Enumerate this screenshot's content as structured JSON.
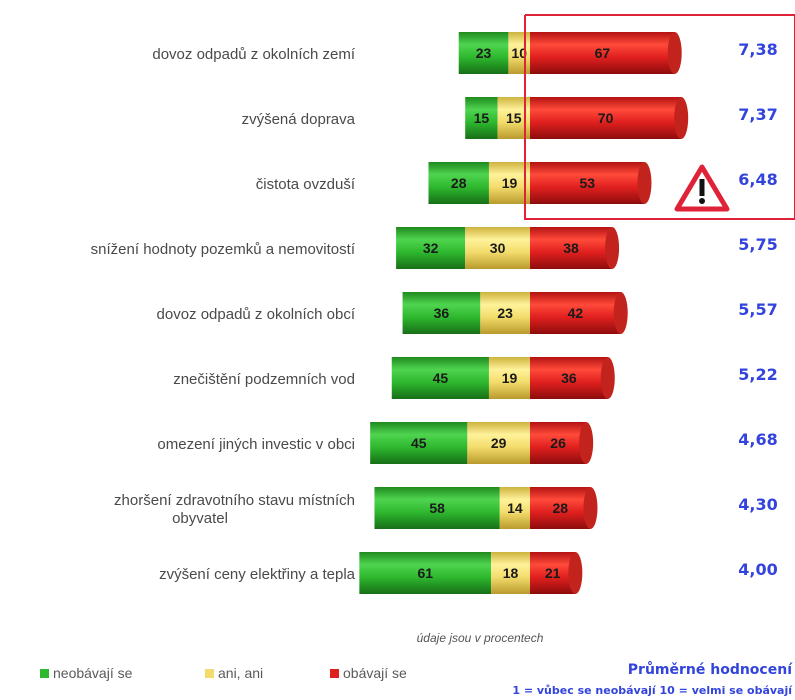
{
  "chart_data": {
    "type": "bar",
    "stacked": true,
    "orientation": "horizontal",
    "note": "údaje jsou v procentech",
    "categories": [
      "dovoz odpadů z okolních zemí",
      "zvýšená doprava",
      "čistota ovzduší",
      "snížení hodnoty pozemků a nemovitostí",
      "dovoz odpadů z okolních obcí",
      "znečištění podzemních vod",
      "omezení jiných investic v obci",
      "zhoršení zdravotního stavu místních obyvatel",
      "zvýšení ceny elektřiny a tepla"
    ],
    "series": [
      {
        "name": "neobávají se",
        "color": "#2eb82e",
        "values": [
          23,
          15,
          28,
          32,
          36,
          45,
          45,
          58,
          61
        ]
      },
      {
        "name": "ani, ani",
        "color": "#f2dc6b",
        "values": [
          10,
          15,
          19,
          30,
          23,
          19,
          29,
          14,
          18
        ]
      },
      {
        "name": "obávají se",
        "color": "#e0201f",
        "values": [
          67,
          70,
          53,
          38,
          42,
          36,
          26,
          28,
          21
        ]
      }
    ],
    "means": [
      "7,38",
      "7,37",
      "6,48",
      "5,75",
      "5,57",
      "5,22",
      "4,68",
      "4,30",
      "4,00"
    ],
    "means_title": "Průměrné hodnocení",
    "means_scale": "1 = vůbec se neobávají  10 = velmi se obávají",
    "highlight_rows": 3,
    "warning_icon": "warning-triangle-icon"
  }
}
